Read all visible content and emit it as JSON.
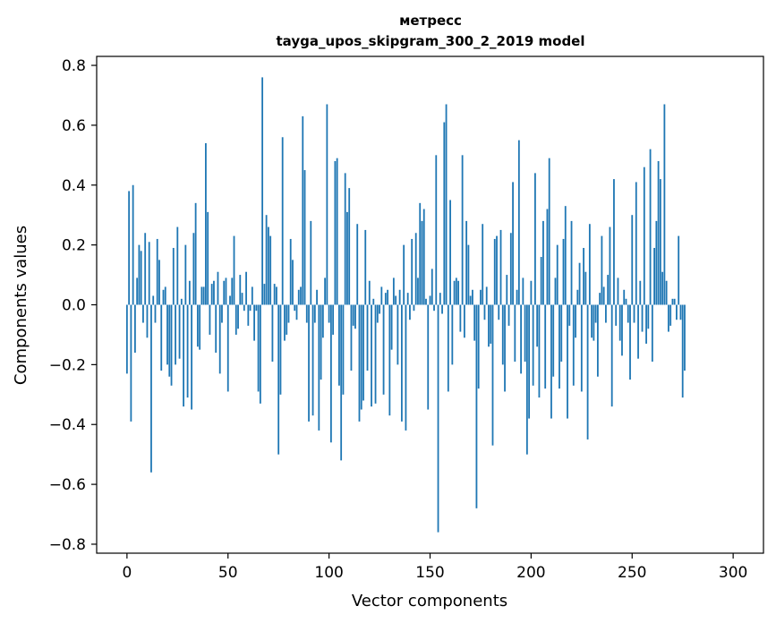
{
  "chart_data": {
    "type": "bar",
    "title": "метресс",
    "subtitle": "tayga_upos_skipgram_300_2_2019 model",
    "xlabel": "Vector components",
    "ylabel": "Components values",
    "xlim": [
      -15,
      315
    ],
    "ylim": [
      -0.83,
      0.83
    ],
    "xticks": [
      0,
      50,
      100,
      150,
      200,
      250,
      300
    ],
    "xtick_labels": [
      "0",
      "50",
      "100",
      "150",
      "200",
      "250",
      "300"
    ],
    "yticks": [
      -0.8,
      -0.6,
      -0.4,
      -0.2,
      0.0,
      0.2,
      0.4,
      0.6,
      0.8
    ],
    "ytick_labels": [
      "−0.8",
      "−0.6",
      "−0.4",
      "−0.2",
      "0.0",
      "0.2",
      "0.4",
      "0.6",
      "0.8"
    ],
    "grid": false,
    "bar_color": "#1f77b4",
    "values": [
      -0.23,
      0.38,
      -0.39,
      0.4,
      -0.16,
      0.09,
      0.2,
      0.18,
      -0.06,
      0.24,
      -0.11,
      0.21,
      -0.56,
      0.03,
      -0.06,
      0.22,
      0.15,
      -0.22,
      0.05,
      0.06,
      -0.2,
      -0.24,
      -0.27,
      0.19,
      -0.2,
      0.26,
      -0.18,
      0.02,
      -0.34,
      0.2,
      -0.31,
      0.08,
      -0.35,
      0.24,
      0.34,
      -0.14,
      -0.15,
      0.06,
      0.06,
      0.54,
      0.31,
      -0.1,
      0.07,
      0.08,
      -0.16,
      0.11,
      -0.23,
      -0.06,
      0.08,
      0.09,
      -0.29,
      0.03,
      0.09,
      0.23,
      -0.1,
      -0.08,
      0.1,
      0.04,
      -0.02,
      0.11,
      -0.07,
      -0.02,
      0.06,
      -0.12,
      -0.02,
      -0.29,
      -0.33,
      0.76,
      0.07,
      0.3,
      0.26,
      0.23,
      -0.19,
      0.07,
      0.06,
      -0.5,
      -0.3,
      0.56,
      -0.12,
      -0.1,
      -0.06,
      0.22,
      0.15,
      -0.02,
      -0.05,
      0.05,
      0.06,
      0.63,
      0.45,
      -0.06,
      -0.39,
      0.28,
      -0.37,
      -0.06,
      0.05,
      -0.42,
      -0.25,
      -0.11,
      0.09,
      0.67,
      -0.06,
      -0.46,
      -0.1,
      0.48,
      0.49,
      -0.27,
      -0.52,
      -0.3,
      0.44,
      0.31,
      0.39,
      -0.22,
      -0.07,
      -0.08,
      0.27,
      -0.39,
      -0.35,
      -0.32,
      0.25,
      -0.22,
      0.08,
      -0.34,
      0.02,
      -0.33,
      -0.06,
      -0.03,
      0.06,
      -0.3,
      0.04,
      0.05,
      -0.37,
      -0.15,
      0.09,
      0.03,
      -0.2,
      0.05,
      -0.39,
      0.2,
      -0.42,
      0.04,
      -0.05,
      0.22,
      -0.02,
      0.24,
      0.09,
      0.34,
      0.28,
      0.32,
      0.02,
      -0.35,
      0.03,
      0.12,
      -0.02,
      0.5,
      -0.76,
      0.04,
      -0.03,
      0.61,
      0.67,
      -0.29,
      0.35,
      -0.2,
      0.08,
      0.09,
      0.08,
      -0.09,
      0.5,
      -0.11,
      0.28,
      0.2,
      0.03,
      0.05,
      -0.12,
      -0.68,
      -0.28,
      0.05,
      0.27,
      -0.05,
      0.06,
      -0.14,
      -0.13,
      -0.47,
      0.22,
      0.23,
      -0.05,
      0.25,
      -0.2,
      -0.29,
      0.1,
      -0.07,
      0.24,
      0.41,
      -0.19,
      0.05,
      0.55,
      -0.23,
      0.09,
      -0.19,
      -0.5,
      -0.38,
      0.08,
      -0.27,
      0.44,
      -0.14,
      -0.31,
      0.16,
      0.28,
      -0.28,
      0.32,
      0.49,
      -0.38,
      -0.24,
      0.09,
      0.2,
      -0.28,
      -0.19,
      0.22,
      0.33,
      -0.38,
      -0.07,
      0.28,
      -0.27,
      -0.11,
      0.05,
      0.14,
      -0.29,
      0.19,
      0.11,
      -0.45,
      0.27,
      -0.11,
      -0.12,
      -0.06,
      -0.24,
      0.04,
      0.23,
      0.06,
      -0.06,
      0.1,
      0.26,
      -0.34,
      0.42,
      -0.07,
      0.09,
      -0.12,
      -0.17,
      0.05,
      0.02,
      -0.06,
      -0.25,
      0.3,
      -0.06,
      0.41,
      -0.18,
      0.08,
      -0.09,
      0.46,
      -0.13,
      -0.08,
      0.52,
      -0.19,
      0.19,
      0.28,
      0.48,
      0.42,
      0.11,
      0.67,
      0.08,
      -0.09,
      -0.07,
      0.02,
      0.02,
      -0.05,
      0.23,
      -0.05,
      -0.31,
      -0.22
    ]
  }
}
